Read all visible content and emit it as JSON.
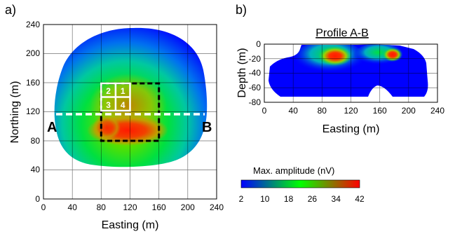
{
  "panel_a": {
    "label": "a)",
    "xlabel": "Easting (m)",
    "ylabel": "Northing (m)",
    "x_ticks": [
      "0",
      "40",
      "80",
      "120",
      "160",
      "200",
      "240"
    ],
    "y_ticks": [
      "240",
      "200",
      "160",
      "120",
      "80",
      "40",
      "0"
    ],
    "xlim": [
      0,
      240
    ],
    "ylim": [
      0,
      240
    ],
    "profile_start_label": "A",
    "profile_end_label": "B",
    "profile_northing": 117,
    "cell_labels": [
      "2",
      "1",
      "3",
      "4"
    ]
  },
  "panel_b": {
    "label": "b)",
    "title": "Profile A-B",
    "xlabel": "Easting (m)",
    "ylabel": "Depth (m)",
    "x_ticks": [
      "0",
      "40",
      "80",
      "120",
      "160",
      "200",
      "240"
    ],
    "y_ticks": [
      "0",
      "-20",
      "-40",
      "-60",
      "-80"
    ],
    "xlim": [
      0,
      240
    ],
    "ylim": [
      -80,
      0
    ]
  },
  "colorbar": {
    "title": "Max. amplitude (nV)",
    "ticks": [
      "2",
      "10",
      "18",
      "26",
      "34",
      "42"
    ],
    "range": [
      2,
      42
    ],
    "colors": [
      "#0000ff",
      "#00ff00",
      "#ff0000"
    ]
  }
}
